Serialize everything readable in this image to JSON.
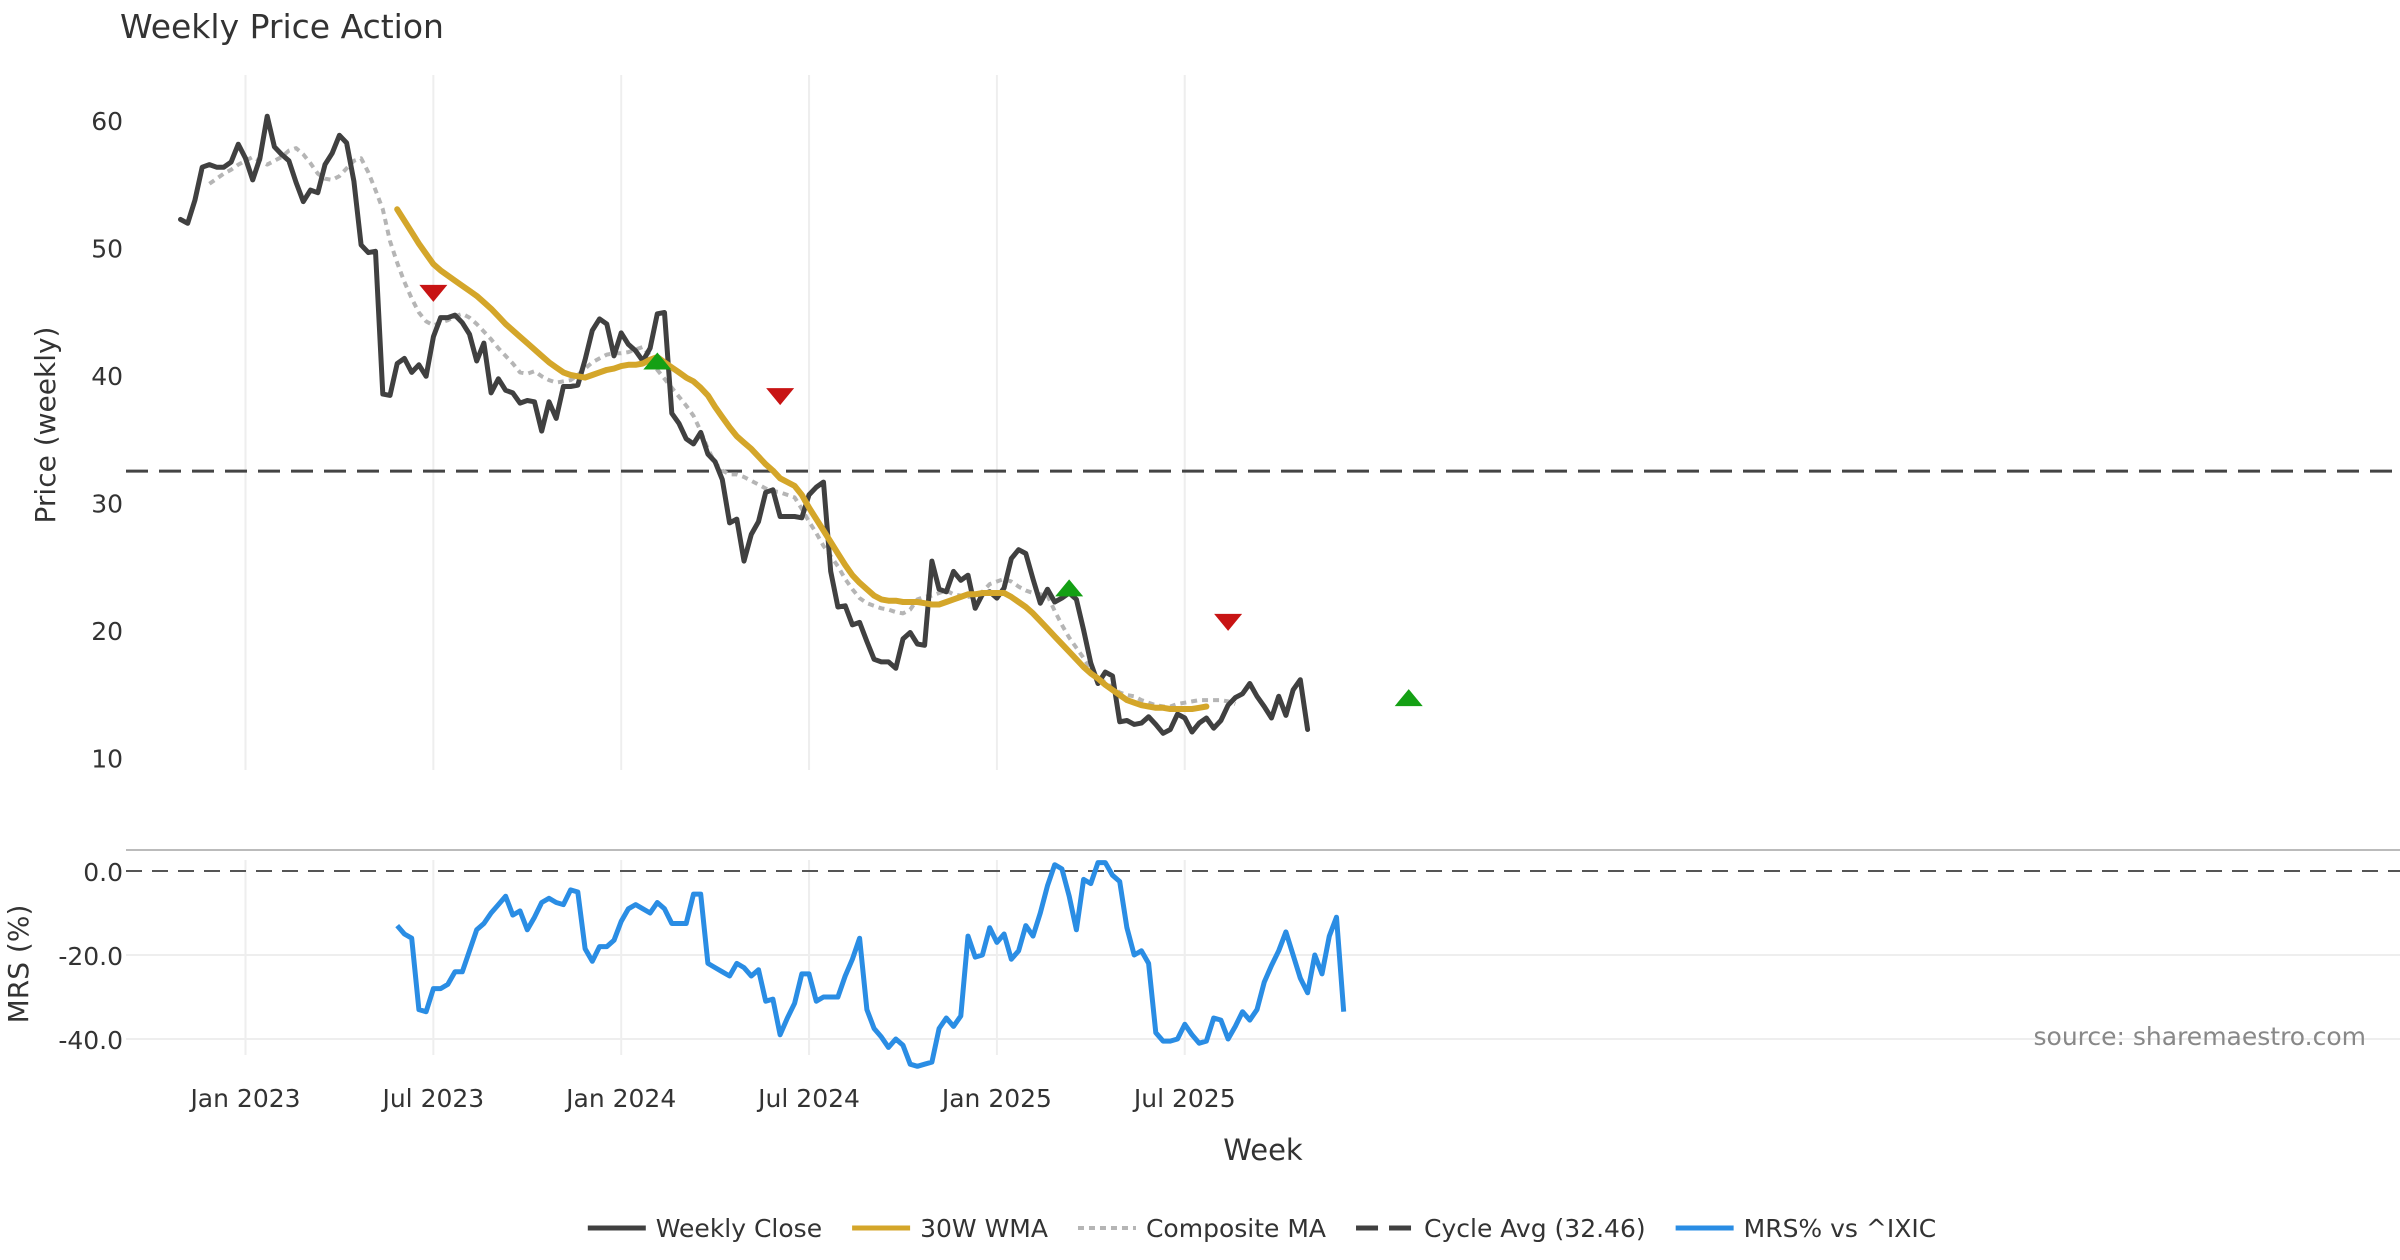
{
  "chart_data": {
    "type": "line",
    "title": "Weekly Price Action",
    "xlabel": "Week",
    "x_ticks": [
      "Jan 2023",
      "Jul 2023",
      "Jan 2024",
      "Jul 2024",
      "Jan 2025",
      "Jul 2025"
    ],
    "source": "source: sharemaestro.com",
    "price_panel": {
      "ylabel": "Price (weekly)",
      "ylim": [
        9,
        64
      ],
      "yticks": [
        10,
        20,
        30,
        40,
        50,
        60
      ],
      "cycle_avg": 32.46,
      "series": [
        {
          "name": "Weekly Close",
          "color": "#404040",
          "x_start": -9,
          "values": [
            52.2,
            51.9,
            53.7,
            56.3,
            56.5,
            56.3,
            56.3,
            56.7,
            58.1,
            57.0,
            55.3,
            57.0,
            60.3,
            57.9,
            57.3,
            56.8,
            55.1,
            53.6,
            54.5,
            54.3,
            56.5,
            57.4,
            58.8,
            58.2,
            55.2,
            50.2,
            49.6,
            49.7,
            38.5,
            38.4,
            40.9,
            41.3,
            40.2,
            40.8,
            39.9,
            43.0,
            44.5,
            44.5,
            44.7,
            44.1,
            43.2,
            41.1,
            42.5,
            38.6,
            39.7,
            38.8,
            38.6,
            37.8,
            38.0,
            37.9,
            35.6,
            37.9,
            36.6,
            39.1,
            39.1,
            39.2,
            41.2,
            43.5,
            44.4,
            44.0,
            41.5,
            43.3,
            42.4,
            41.9,
            41.1,
            42.1,
            44.8,
            44.9,
            37.0,
            36.2,
            35.0,
            34.6,
            35.5,
            33.8,
            33.2,
            31.8,
            28.4,
            28.7,
            25.4,
            27.5,
            28.5,
            30.8,
            31.0,
            28.9,
            28.9,
            28.9,
            28.8,
            30.6,
            31.2,
            31.6,
            24.6,
            21.8,
            21.9,
            20.4,
            20.6,
            19.1,
            17.7,
            17.5,
            17.5,
            17.0,
            19.3,
            19.8,
            18.9,
            18.8,
            25.4,
            23.2,
            23.0,
            24.6,
            23.9,
            24.3,
            21.7,
            22.8,
            23.0,
            22.5,
            23.3,
            25.6,
            26.3,
            26.0,
            24.0,
            22.1,
            23.2,
            22.2,
            22.5,
            22.9,
            22.4,
            20.0,
            17.4,
            15.8,
            16.7,
            16.4,
            12.8,
            12.9,
            12.6,
            12.7,
            13.2,
            12.6,
            11.9,
            12.2,
            13.4,
            13.1,
            12.0,
            12.7,
            13.1,
            12.3,
            12.9,
            14.1,
            14.7,
            15.0,
            15.8,
            14.8,
            14.0,
            13.1,
            14.8,
            13.3,
            15.3,
            16.1,
            12.2
          ]
        },
        {
          "name": "30W WMA",
          "color": "#d4a62a",
          "x_start": 21,
          "values": [
            53.0,
            52.1,
            51.2,
            50.3,
            49.5,
            48.7,
            48.2,
            47.8,
            47.4,
            47.0,
            46.6,
            46.2,
            45.7,
            45.2,
            44.6,
            44.0,
            43.5,
            43.0,
            42.5,
            42.0,
            41.5,
            41.0,
            40.6,
            40.2,
            40.0,
            39.9,
            39.8,
            40.0,
            40.2,
            40.4,
            40.5,
            40.7,
            40.8,
            40.8,
            40.9,
            41.2,
            41.4,
            41.0,
            40.6,
            40.2,
            39.8,
            39.5,
            39.0,
            38.4,
            37.5,
            36.7,
            35.9,
            35.2,
            34.7,
            34.2,
            33.6,
            33.0,
            32.5,
            31.9,
            31.6,
            31.3,
            30.6,
            29.6,
            28.7,
            27.8,
            26.9,
            26.0,
            25.1,
            24.3,
            23.7,
            23.2,
            22.7,
            22.4,
            22.3,
            22.3,
            22.2,
            22.2,
            22.2,
            22.1,
            22.0,
            22.0,
            22.2,
            22.4,
            22.6,
            22.8,
            22.8,
            22.9,
            22.9,
            22.9,
            22.9,
            22.6,
            22.2,
            21.8,
            21.3,
            20.7,
            20.1,
            19.5,
            18.9,
            18.3,
            17.7,
            17.1,
            16.6,
            16.2,
            15.7,
            15.3,
            14.9,
            14.5,
            14.3,
            14.1,
            14.0,
            13.9,
            13.9,
            13.8,
            13.8,
            13.8,
            13.8,
            13.9,
            14.0
          ]
        },
        {
          "name": "Composite MA",
          "color": "#b5b5b5",
          "x_start": -5,
          "values": [
            55.0,
            55.4,
            55.8,
            56.1,
            56.5,
            56.8,
            57.1,
            56.8,
            56.5,
            56.8,
            57.1,
            57.6,
            57.8,
            57.3,
            56.6,
            55.8,
            55.4,
            55.3,
            55.6,
            56.2,
            56.8,
            57.0,
            55.9,
            54.5,
            53.0,
            50.5,
            48.8,
            47.3,
            46.0,
            44.9,
            44.2,
            43.9,
            44.1,
            44.3,
            44.6,
            44.8,
            44.5,
            44.0,
            43.4,
            42.8,
            42.1,
            41.5,
            40.9,
            40.2,
            40.1,
            40.3,
            39.9,
            39.6,
            39.4,
            39.5,
            39.6,
            40.0,
            40.5,
            41.0,
            41.3,
            41.6,
            41.7,
            41.7,
            41.8,
            42.0,
            42.2,
            41.5,
            40.4,
            39.7,
            39.0,
            38.3,
            37.6,
            36.8,
            35.6,
            34.2,
            33.1,
            32.5,
            32.2,
            32.2,
            32.0,
            31.7,
            31.4,
            31.1,
            30.9,
            30.8,
            30.6,
            30.4,
            29.5,
            28.5,
            27.6,
            26.6,
            25.8,
            25.0,
            24.0,
            23.2,
            22.5,
            22.1,
            21.9,
            21.7,
            21.6,
            21.4,
            21.3,
            21.6,
            22.4,
            22.6,
            22.7,
            22.9,
            23.1,
            22.8,
            22.7,
            22.6,
            22.7,
            23.0,
            23.6,
            23.8,
            24.0,
            23.8,
            23.4,
            23.1,
            22.9,
            22.8,
            22.7,
            21.5,
            20.4,
            19.4,
            18.6,
            17.8,
            16.9,
            16.3,
            15.9,
            15.5,
            15.1,
            14.9,
            14.8,
            14.5,
            14.3,
            14.1,
            14.0,
            14.0,
            14.2,
            14.3,
            14.4,
            14.5,
            14.5,
            14.5,
            14.5,
            14.4,
            14.2
          ]
        }
      ],
      "markers": [
        {
          "type": "sell",
          "color": "#c81414",
          "x": 26,
          "value": 46.4
        },
        {
          "type": "buy",
          "color": "#14a014",
          "x": 57,
          "value": 41.1
        },
        {
          "type": "sell",
          "color": "#c81414",
          "x": 74,
          "value": 38.3
        },
        {
          "type": "buy",
          "color": "#14a014",
          "x": 114,
          "value": 23.3
        },
        {
          "type": "sell",
          "color": "#c81414",
          "x": 136,
          "value": 20.6
        },
        {
          "type": "buy",
          "color": "#14a014",
          "x": 161,
          "value": 14.7
        }
      ]
    },
    "mrs_panel": {
      "ylabel": "MRS (%)",
      "ylim": [
        -50,
        5
      ],
      "yticks": [
        "0.0",
        "-20.0",
        "-40.0"
      ],
      "series": {
        "name": "MRS% vs ^IXIC",
        "color": "#2a8de4",
        "x_start": 21,
        "values": [
          -13,
          -15,
          -16,
          -33,
          -33.5,
          -28,
          -28,
          -27,
          -24,
          -24,
          -19,
          -14,
          -12.5,
          -10,
          -8,
          -6,
          -10.5,
          -9.5,
          -14,
          -11,
          -7.5,
          -6.5,
          -7.5,
          -8,
          -4.5,
          -5,
          -18.5,
          -21.5,
          -18,
          -18,
          -16.5,
          -12,
          -9,
          -8,
          -9,
          -10,
          -7.5,
          -9,
          -12.5,
          -12.5,
          -12.5,
          -5.5,
          -5.5,
          -22,
          -23,
          -24,
          -25,
          -22,
          -23,
          -25,
          -23.5,
          -31,
          -30.5,
          -39,
          -35,
          -31.5,
          -24.5,
          -24.5,
          -31,
          -30,
          -30,
          -30,
          -25,
          -21,
          -16,
          -33,
          -37.5,
          -39.5,
          -42,
          -40,
          -41.5,
          -46,
          -46.5,
          -46,
          -45.5,
          -37.5,
          -35,
          -37,
          -34.5,
          -15.5,
          -20.5,
          -20,
          -13.5,
          -17,
          -15,
          -21,
          -19,
          -13,
          -15.5,
          -10,
          -3.5,
          1.5,
          0.5,
          -6,
          -14,
          -2,
          -3,
          2,
          2,
          -1,
          -2.5,
          -13.5,
          -20,
          -19,
          -22,
          -38.5,
          -40.5,
          -40.5,
          -40,
          -36.5,
          -39,
          -41,
          -40.5,
          -35,
          -35.5,
          -40,
          -37,
          -33.5,
          -35.5,
          -33,
          -26.5,
          -22.5,
          -19,
          -14.5,
          -20,
          -25.5,
          -29,
          -20,
          -24.5,
          -15.5,
          -11,
          -33.5
        ]
      }
    },
    "legend": [
      {
        "label": "Weekly Close",
        "color": "#404040",
        "style": "solid"
      },
      {
        "label": "30W WMA",
        "color": "#d4a62a",
        "style": "solid"
      },
      {
        "label": "Composite MA",
        "color": "#b5b5b5",
        "style": "dotted"
      },
      {
        "label": "Cycle Avg (32.46)",
        "color": "#404040",
        "style": "dashed"
      },
      {
        "label": "MRS% vs ^IXIC",
        "color": "#2a8de4",
        "style": "solid"
      }
    ]
  }
}
